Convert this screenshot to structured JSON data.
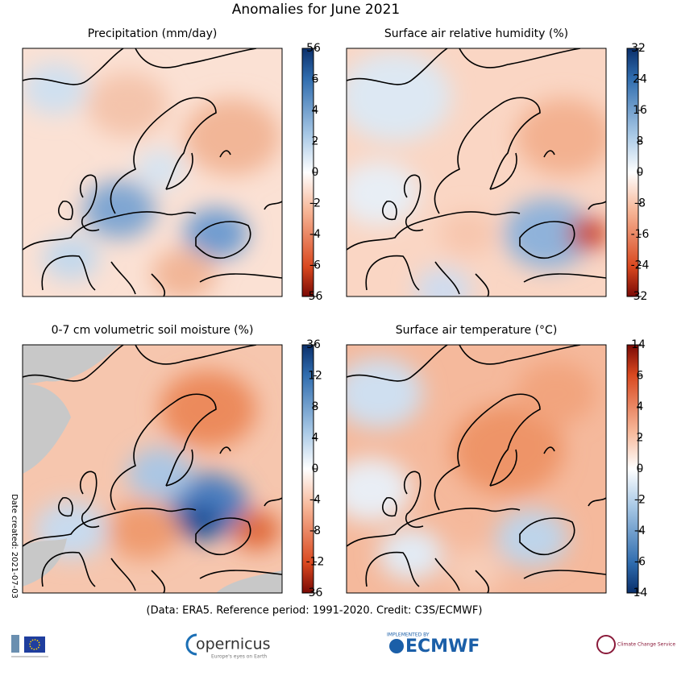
{
  "title": "Anomalies for June 2021",
  "panels": [
    {
      "title": "Precipitation (mm/day)",
      "ticks": [
        56,
        6,
        4,
        2,
        0,
        -2,
        -4,
        -6,
        -56
      ]
    },
    {
      "title": "Surface air relative humidity (%)",
      "ticks": [
        32,
        24,
        16,
        8,
        0,
        -8,
        -16,
        -24,
        -32
      ]
    },
    {
      "title": "0-7 cm volumetric soil moisture (%)",
      "ticks": [
        36,
        12,
        8,
        4,
        0,
        -4,
        -8,
        -12,
        -36
      ]
    },
    {
      "title": "Surface air temperature (°C)",
      "ticks": [
        14,
        6,
        4,
        2,
        0,
        -2,
        -4,
        -6,
        -14
      ]
    }
  ],
  "footer": "(Data: ERA5.   Reference period: 1991-2020.   Credit: C3S/ECMWF)",
  "date_created": "Date created: 2021-07-03",
  "logos": {
    "copernicus": "opernicus",
    "copernicus_tagline": "Europe's eyes on Earth",
    "ecmwf_top": "IMPLEMENTED BY",
    "ecmwf": "ECMWF",
    "c3s": "Climate Change Service"
  }
}
